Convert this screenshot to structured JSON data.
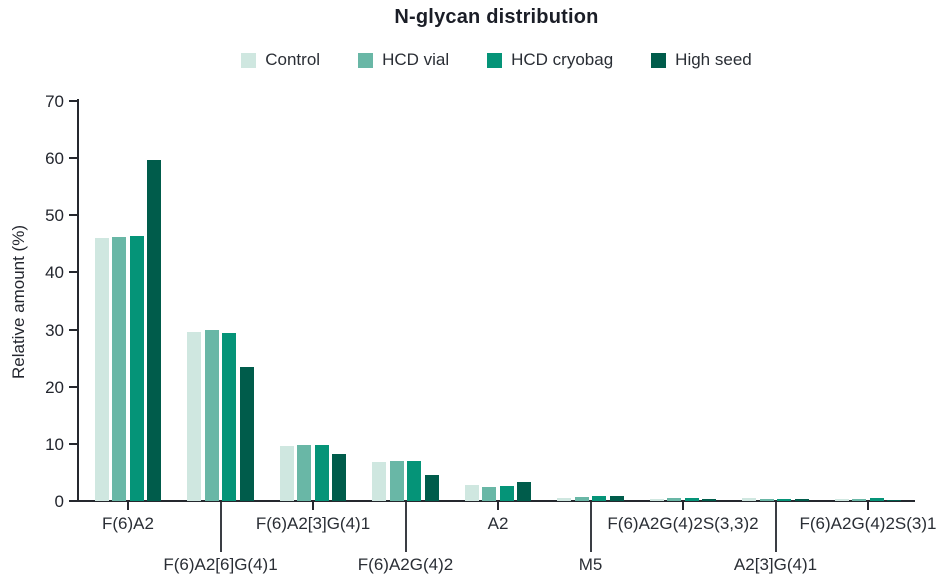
{
  "title": "N-glycan distribution",
  "y_axis": {
    "label": "Relative amount (%)"
  },
  "chart_data": {
    "type": "bar",
    "title": "N-glycan distribution",
    "xlabel": "",
    "ylabel": "Relative amount (%)",
    "ylim": [
      0,
      70
    ],
    "yticks": [
      0,
      10,
      20,
      30,
      40,
      50,
      60,
      70
    ],
    "grid": false,
    "legend_position": "top",
    "categories": [
      "F(6)A2",
      "F(6)A2[6]G(4)1",
      "F(6)A2[3]G(4)1",
      "F(6)A2G(4)2",
      "A2",
      "M5",
      "F(6)A2G(4)2S(3,3)2",
      "A2[3]G(4)1",
      "F(6)A2G(4)2S(3)1"
    ],
    "series": [
      {
        "name": "Control",
        "color": "#cfe7e0",
        "values": [
          46.0,
          29.6,
          9.7,
          6.8,
          2.8,
          0.5,
          0.4,
          0.6,
          0.3
        ]
      },
      {
        "name": "HCD vial",
        "color": "#69b7a6",
        "values": [
          46.2,
          30.0,
          9.8,
          7.0,
          2.5,
          0.7,
          0.5,
          0.3,
          0.4
        ]
      },
      {
        "name": "HCD cryobag",
        "color": "#059478",
        "values": [
          46.4,
          29.4,
          9.8,
          7.0,
          2.7,
          0.8,
          0.6,
          0.4,
          0.6
        ]
      },
      {
        "name": "High seed",
        "color": "#005c4b",
        "values": [
          59.7,
          23.4,
          8.2,
          4.5,
          3.4,
          0.8,
          0.4,
          0.3,
          0.2
        ]
      }
    ],
    "colors": {
      "control": "#cfe7e0",
      "hcd_vial": "#69b7a6",
      "hcd_cryobag": "#059478",
      "high_seed": "#005c4b",
      "axis": "#25282e",
      "text": "#23262e"
    }
  }
}
